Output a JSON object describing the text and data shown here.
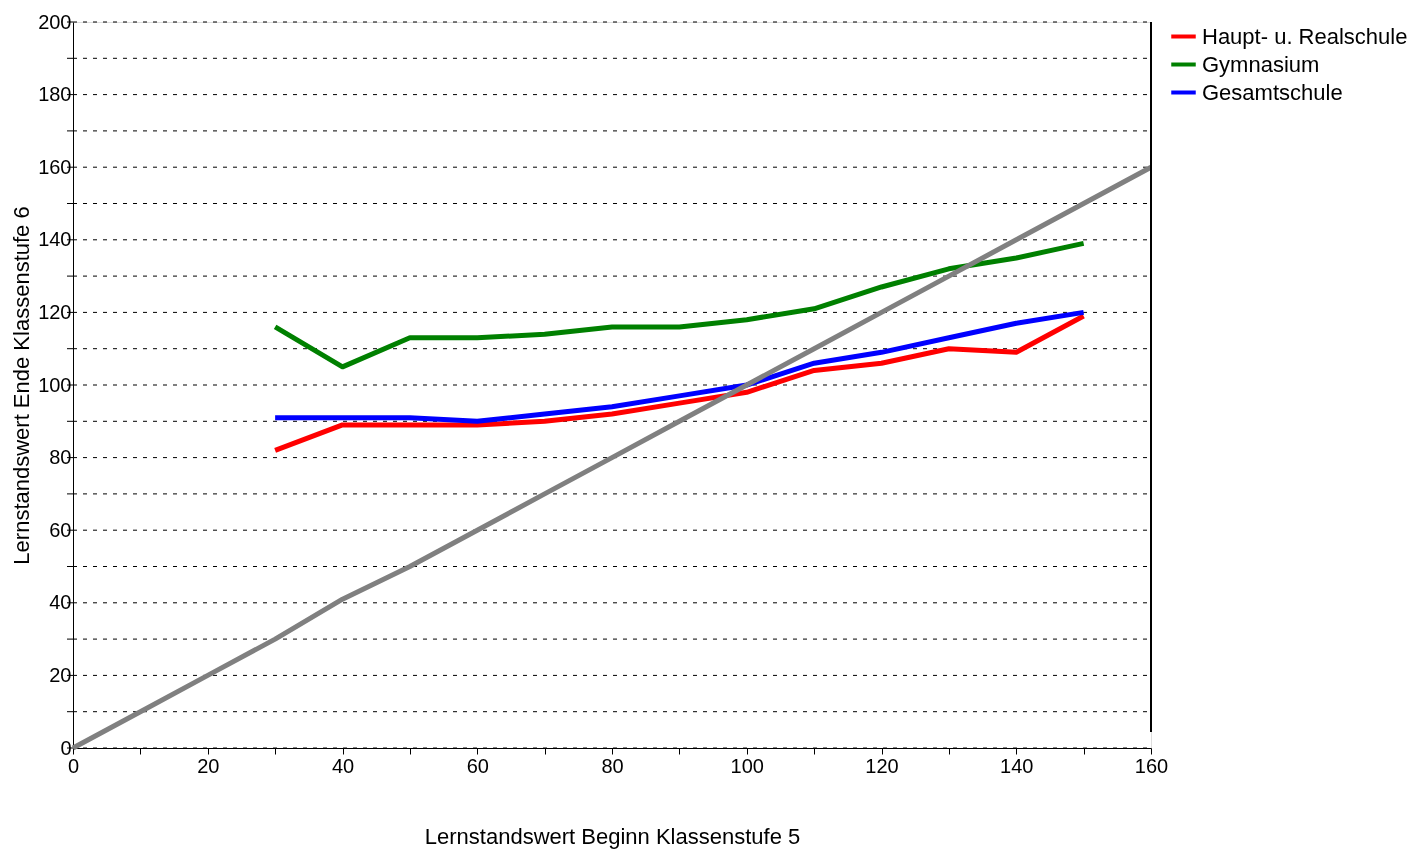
{
  "chart_data": {
    "type": "line",
    "xlabel": "Lernstandswert Beginn Klassenstufe 5",
    "ylabel": "Lernstandswert Ende Klassenstufe 6",
    "xlim": [
      0,
      160
    ],
    "ylim": [
      0,
      200
    ],
    "xticks": [
      0,
      {
        "value": 10,
        "label": null
      },
      20,
      {
        "value": 30,
        "label": null
      },
      40,
      {
        "value": 50,
        "label": null
      },
      60,
      {
        "value": 70,
        "label": null
      },
      80,
      {
        "value": 90,
        "label": null
      },
      100,
      {
        "value": 110,
        "label": null
      },
      120,
      {
        "value": 130,
        "label": null
      },
      140,
      {
        "value": 150,
        "label": null
      },
      160
    ],
    "yticks": [
      0,
      {
        "value": 10,
        "label": null
      },
      20,
      {
        "value": 30,
        "label": null
      },
      40,
      {
        "value": 50,
        "label": null
      },
      60,
      {
        "value": 70,
        "label": null
      },
      80,
      {
        "value": 90,
        "label": null
      },
      100,
      {
        "value": 110,
        "label": null
      },
      120,
      {
        "value": 130,
        "label": null
      },
      140,
      {
        "value": 150,
        "label": null
      },
      160,
      {
        "value": 170,
        "label": null
      },
      180,
      {
        "value": 190,
        "label": null
      },
      200
    ],
    "grid": "y",
    "legend": "right",
    "line_style": "solid",
    "marker": "none",
    "series": [
      {
        "name": "Haupt- u. Realschule",
        "color": "#ff0000",
        "x": [
          30,
          40,
          50,
          60,
          70,
          80,
          90,
          100,
          110,
          120,
          130,
          140,
          150
        ],
        "values": [
          82,
          89,
          89,
          89,
          90,
          92,
          95,
          98,
          104,
          106,
          110,
          109,
          119
        ]
      },
      {
        "name": "Gymnasium",
        "color": "#008000",
        "x": [
          30,
          40,
          50,
          60,
          70,
          80,
          90,
          100,
          110,
          120,
          130,
          140,
          150
        ],
        "values": [
          116,
          105,
          113,
          113,
          114,
          116,
          116,
          118,
          121,
          127,
          132,
          135,
          139
        ]
      },
      {
        "name": "Gesamtschule",
        "color": "#0000ff",
        "x": [
          30,
          40,
          50,
          60,
          70,
          80,
          90,
          100,
          110,
          120,
          130,
          140,
          150
        ],
        "values": [
          91,
          91,
          91,
          90,
          92,
          94,
          97,
          100,
          106,
          109,
          113,
          117,
          120
        ]
      },
      {
        "color": "#808080",
        "x": [
          0,
          10,
          20,
          30,
          40,
          50,
          60,
          70,
          80,
          90,
          100,
          110,
          120,
          130,
          140,
          150,
          160
        ],
        "values": [
          0,
          10,
          20,
          30,
          41,
          50,
          60,
          70,
          80,
          90,
          100,
          110,
          120,
          130,
          140,
          150,
          160
        ]
      }
    ]
  }
}
